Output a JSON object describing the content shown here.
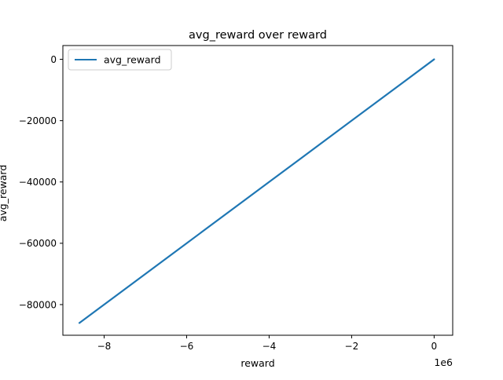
{
  "chart_data": {
    "type": "line",
    "title": "avg_reward over reward",
    "xlabel": "reward",
    "ylabel": "avg_reward",
    "x_offset_label": "1e6",
    "xlim": [
      -9000000,
      450000
    ],
    "ylim": [
      -90000,
      4500
    ],
    "x_ticks": [
      {
        "value": -8000000,
        "label": "−8"
      },
      {
        "value": -6000000,
        "label": "−6"
      },
      {
        "value": -4000000,
        "label": "−4"
      },
      {
        "value": -2000000,
        "label": "−2"
      },
      {
        "value": 0,
        "label": "0"
      }
    ],
    "y_ticks": [
      {
        "value": 0,
        "label": "0"
      },
      {
        "value": -20000,
        "label": "−20000"
      },
      {
        "value": -40000,
        "label": "−40000"
      },
      {
        "value": -60000,
        "label": "−60000"
      },
      {
        "value": -80000,
        "label": "−80000"
      }
    ],
    "grid": false,
    "legend": {
      "position": "top-left"
    },
    "series": [
      {
        "name": "avg_reward",
        "color": "#1f77b4",
        "points": [
          {
            "x": -8600000,
            "y": -86000
          },
          {
            "x": -6000000,
            "y": -60000
          },
          {
            "x": -4000000,
            "y": -40000
          },
          {
            "x": -2000000,
            "y": -20000
          },
          {
            "x": 0,
            "y": 0
          }
        ]
      }
    ]
  }
}
